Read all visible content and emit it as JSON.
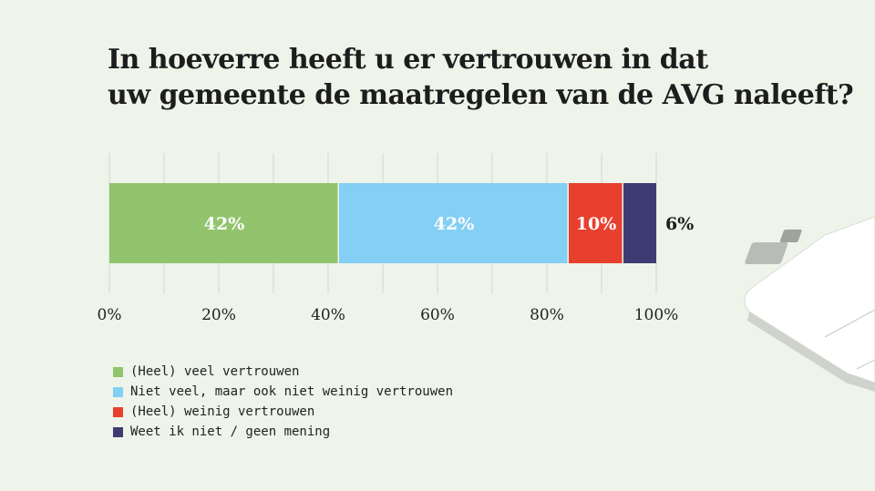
{
  "title_lines": [
    "In hoeverre heeft u er vertrouwen in dat",
    "uw gemeente de maatregelen van de AVG naleeft?"
  ],
  "colors": {
    "background": "#eef4ea",
    "grid": "#d2d8cf",
    "text": "#1d1d1d"
  },
  "chart_data": {
    "type": "bar",
    "orientation": "horizontal-stacked",
    "categories": [
      ""
    ],
    "xlim": [
      0,
      100
    ],
    "x_ticks": [
      "0%",
      "20%",
      "40%",
      "60%",
      "80%",
      "100%"
    ],
    "x_tick_values": [
      0,
      20,
      40,
      60,
      80,
      100
    ],
    "grid": true,
    "legend": "bottom-left",
    "series": [
      {
        "name": "(Heel) veel vertrouwen",
        "values": [
          42
        ],
        "label": "42%",
        "color": "#91c46c"
      },
      {
        "name": "Niet veel, maar ook niet weinig vertrouwen",
        "values": [
          42
        ],
        "label": "42%",
        "color": "#84cff4"
      },
      {
        "name": "(Heel) weinig vertrouwen",
        "values": [
          10
        ],
        "label": "10%",
        "color": "#e8402e"
      },
      {
        "name": "Weet ik niet / geen mening",
        "values": [
          6
        ],
        "label": "6%",
        "color": "#3e3b73"
      }
    ]
  }
}
